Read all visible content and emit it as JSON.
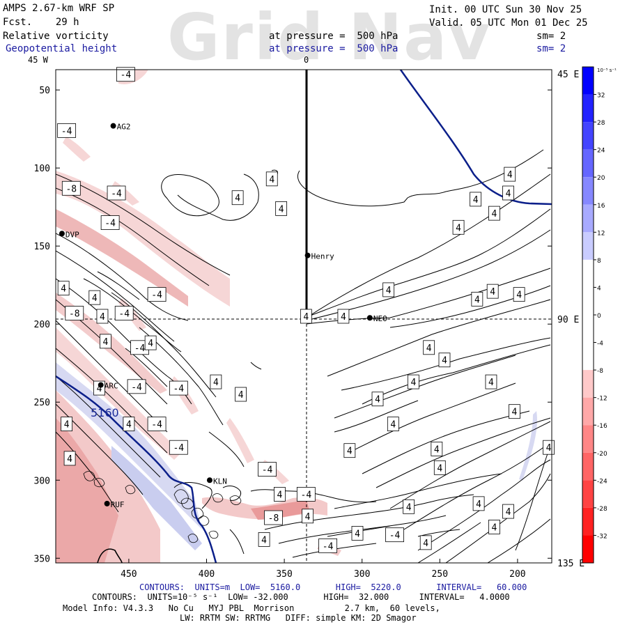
{
  "header": {
    "model": "AMPS 2.67-km WRF SP",
    "forecast": "Fcst.    29 h",
    "field1": "Relative vorticity",
    "field2": "Geopotential height",
    "pressure1": "at pressure =  500 hPa",
    "pressure2": "at pressure =  500 hPa",
    "init": "Init. 00 UTC Sun 30 Nov 25",
    "valid": "Valid. 05 UTC Mon 01 Dec 25",
    "sm1": "sm= 2",
    "sm2": "sm= 2",
    "watermark": "Grid Nav"
  },
  "axes": {
    "top_left": "45 W",
    "top_mid": "0",
    "right_labels": [
      "45 E",
      "90 E",
      "135 E"
    ],
    "y_ticks": [
      50,
      100,
      150,
      200,
      250,
      300,
      350
    ],
    "x_ticks": [
      450,
      400,
      350,
      300,
      250,
      200
    ],
    "y_range": [
      37,
      353
    ],
    "x_range": [
      497,
      178
    ]
  },
  "colorbar": {
    "unit": "10⁻⁵ s⁻¹",
    "labels": [
      "32",
      "28",
      "24",
      "20",
      "16",
      "12",
      "8",
      "4",
      "0",
      "-4",
      "-8",
      "-12",
      "-16",
      "-20",
      "-24",
      "-28",
      "-32"
    ]
  },
  "stations": [
    {
      "name": "AG2",
      "x": 460,
      "y": 73
    },
    {
      "name": "DVP",
      "x": 493,
      "y": 142
    },
    {
      "name": "Henry",
      "x": 335,
      "y": 156
    },
    {
      "name": "NEO",
      "x": 295,
      "y": 196
    },
    {
      "name": "ARC",
      "x": 468,
      "y": 239
    },
    {
      "name": "KLN",
      "x": 398,
      "y": 300
    },
    {
      "name": "RUF",
      "x": 464,
      "y": 315
    }
  ],
  "contour_labels": [
    {
      "t": "-4",
      "x": 452,
      "y": 40
    },
    {
      "t": "-4",
      "x": 490,
      "y": 76
    },
    {
      "t": "-8",
      "x": 487,
      "y": 113
    },
    {
      "t": "-4",
      "x": 458,
      "y": 116
    },
    {
      "t": "-4",
      "x": 462,
      "y": 135
    },
    {
      "t": "4",
      "x": 358,
      "y": 107
    },
    {
      "t": "4",
      "x": 380,
      "y": 119
    },
    {
      "t": "4",
      "x": 352,
      "y": 126
    },
    {
      "t": "4",
      "x": 205,
      "y": 104
    },
    {
      "t": "4",
      "x": 206,
      "y": 116
    },
    {
      "t": "4",
      "x": 227,
      "y": 120
    },
    {
      "t": "4",
      "x": 215,
      "y": 129
    },
    {
      "t": "4",
      "x": 238,
      "y": 138
    },
    {
      "t": "4",
      "x": 492,
      "y": 177
    },
    {
      "t": "4",
      "x": 472,
      "y": 183
    },
    {
      "t": "-4",
      "x": 432,
      "y": 181
    },
    {
      "t": "-8",
      "x": 485,
      "y": 193
    },
    {
      "t": "-4",
      "x": 453,
      "y": 193
    },
    {
      "t": "4",
      "x": 467,
      "y": 195
    },
    {
      "t": "4",
      "x": 336,
      "y": 195
    },
    {
      "t": "4",
      "x": 312,
      "y": 195
    },
    {
      "t": "4",
      "x": 283,
      "y": 178
    },
    {
      "t": "4",
      "x": 226,
      "y": 184
    },
    {
      "t": "4",
      "x": 216,
      "y": 179
    },
    {
      "t": "4",
      "x": 199,
      "y": 181
    },
    {
      "t": "4",
      "x": 465,
      "y": 211
    },
    {
      "t": "-4",
      "x": 443,
      "y": 215
    },
    {
      "t": "4",
      "x": 436,
      "y": 212
    },
    {
      "t": "-4",
      "x": 445,
      "y": 240
    },
    {
      "t": "4",
      "x": 469,
      "y": 241
    },
    {
      "t": "-4",
      "x": 418,
      "y": 241
    },
    {
      "t": "4",
      "x": 394,
      "y": 237
    },
    {
      "t": "4",
      "x": 378,
      "y": 245
    },
    {
      "t": "4",
      "x": 257,
      "y": 215
    },
    {
      "t": "4",
      "x": 247,
      "y": 223
    },
    {
      "t": "4",
      "x": 267,
      "y": 237
    },
    {
      "t": "4",
      "x": 290,
      "y": 248
    },
    {
      "t": "4",
      "x": 202,
      "y": 256
    },
    {
      "t": "4",
      "x": 217,
      "y": 237
    },
    {
      "t": "4",
      "x": 490,
      "y": 264
    },
    {
      "t": "4",
      "x": 450,
      "y": 264
    },
    {
      "t": "-4",
      "x": 432,
      "y": 264
    },
    {
      "t": "-4",
      "x": 418,
      "y": 279
    },
    {
      "t": "4",
      "x": 280,
      "y": 264
    },
    {
      "t": "4",
      "x": 308,
      "y": 281
    },
    {
      "t": "4",
      "x": 180,
      "y": 279
    },
    {
      "t": "4",
      "x": 488,
      "y": 286
    },
    {
      "t": "4",
      "x": 252,
      "y": 280
    },
    {
      "t": "4",
      "x": 250,
      "y": 292
    },
    {
      "t": "-4",
      "x": 361,
      "y": 293
    },
    {
      "t": "4",
      "x": 353,
      "y": 309
    },
    {
      "t": "-4",
      "x": 336,
      "y": 309
    },
    {
      "t": "4",
      "x": 270,
      "y": 317
    },
    {
      "t": "4",
      "x": 225,
      "y": 315
    },
    {
      "t": "4",
      "x": 206,
      "y": 320
    },
    {
      "t": "-8",
      "x": 357,
      "y": 324
    },
    {
      "t": "4",
      "x": 335,
      "y": 323
    },
    {
      "t": "4",
      "x": 215,
      "y": 330
    },
    {
      "t": "4",
      "x": 303,
      "y": 334
    },
    {
      "t": "-4",
      "x": 279,
      "y": 335
    },
    {
      "t": "4",
      "x": 363,
      "y": 338
    },
    {
      "t": "-4",
      "x": 322,
      "y": 342
    },
    {
      "t": "4",
      "x": 259,
      "y": 340
    }
  ],
  "height_label": "5160",
  "footer": {
    "line1": "CONTOURS:  UNITS=m  LOW=  5160.0       HIGH=  5220.0       INTERVAL=   60.000",
    "line2": "CONTOURS:  UNITS=10⁻⁵ s⁻¹  LOW= -32.000       HIGH=  32.000      INTERVAL=   4.0000",
    "line3": "Model Info: V4.3.3   No Cu   MYJ PBL  Morrison          2.7 km,  60 levels,",
    "line4": "LW: RRTM SW: RRTMG   DIFF: simple KM: 2D Smagor"
  }
}
